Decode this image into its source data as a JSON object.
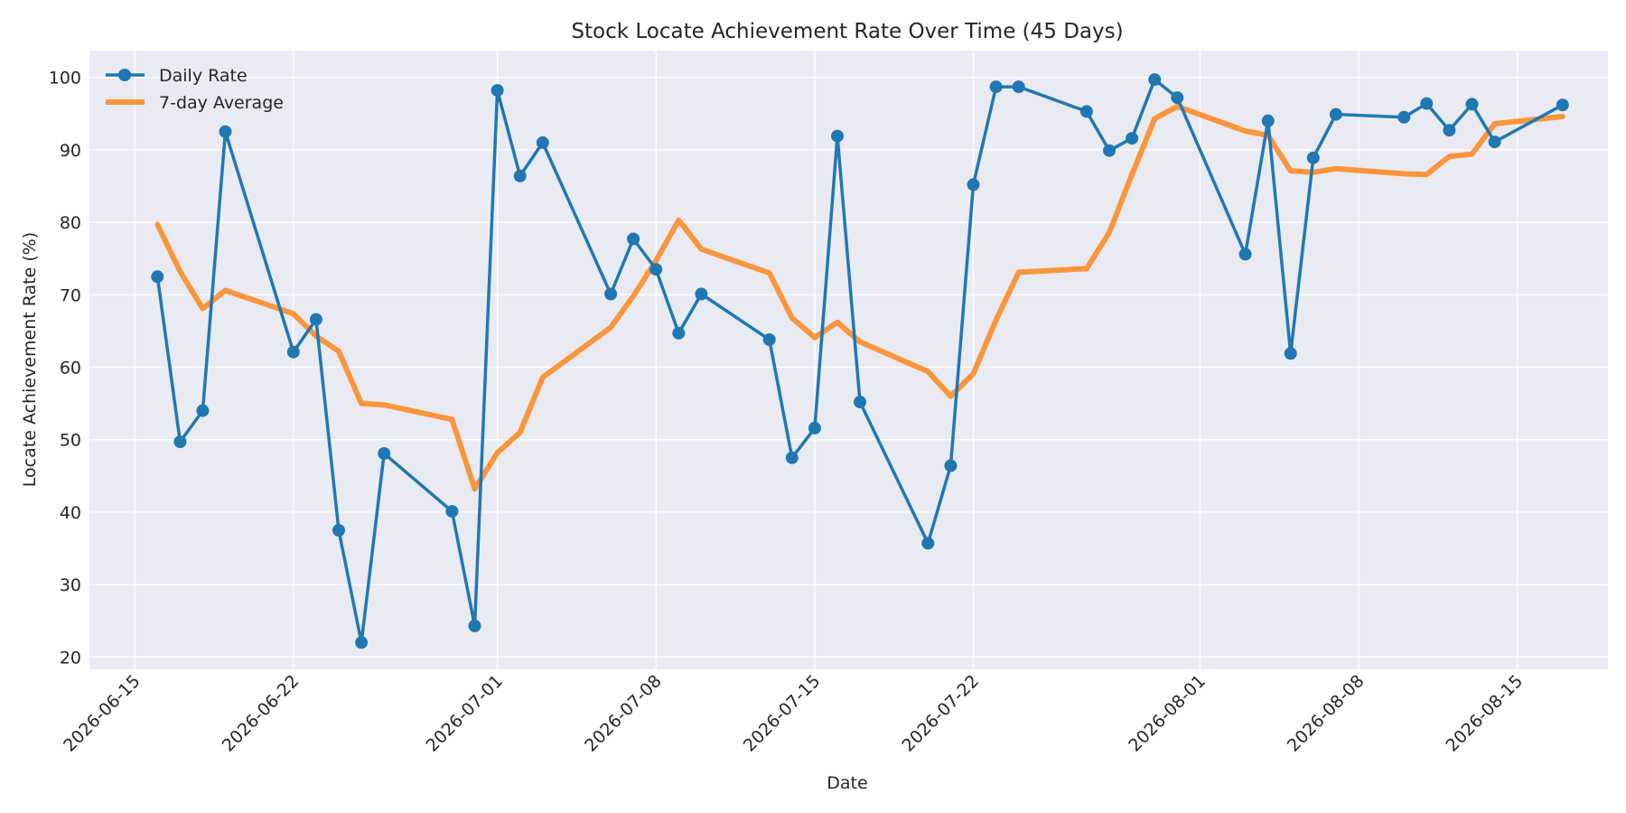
{
  "chart_data": {
    "type": "line",
    "title": "Stock Locate Achievement Rate Over Time (45 Days)",
    "xlabel": "Date",
    "ylabel": "Locate Achievement Rate (%)",
    "x_ticks": [
      "2026-06-15",
      "2026-06-22",
      "2026-07-01",
      "2026-07-08",
      "2026-07-15",
      "2026-07-22",
      "2026-08-01",
      "2026-08-08",
      "2026-08-15"
    ],
    "y_ticks": [
      20,
      30,
      40,
      50,
      60,
      70,
      80,
      90,
      100
    ],
    "xlim": [
      "2026-06-13",
      "2026-08-19"
    ],
    "ylim": [
      18.3,
      103.7
    ],
    "grid": true,
    "legend_position": "top-left",
    "x": [
      "2026-06-16",
      "2026-06-17",
      "2026-06-18",
      "2026-06-19",
      "2026-06-22",
      "2026-06-23",
      "2026-06-24",
      "2026-06-25",
      "2026-06-26",
      "2026-06-29",
      "2026-06-30",
      "2026-07-01",
      "2026-07-02",
      "2026-07-03",
      "2026-07-06",
      "2026-07-07",
      "2026-07-08",
      "2026-07-09",
      "2026-07-10",
      "2026-07-13",
      "2026-07-14",
      "2026-07-15",
      "2026-07-16",
      "2026-07-17",
      "2026-07-20",
      "2026-07-21",
      "2026-07-22",
      "2026-07-23",
      "2026-07-24",
      "2026-07-27",
      "2026-07-28",
      "2026-07-29",
      "2026-07-30",
      "2026-07-31",
      "2026-08-03",
      "2026-08-04",
      "2026-08-05",
      "2026-08-06",
      "2026-08-07",
      "2026-08-10",
      "2026-08-11",
      "2026-08-12",
      "2026-08-13",
      "2026-08-14",
      "2026-08-17"
    ],
    "series": [
      {
        "name": "Daily Rate",
        "color": "#1f77b4",
        "marker": "circle",
        "values": [
          72.5,
          49.7,
          54.0,
          92.5,
          62.1,
          66.6,
          37.5,
          22.0,
          48.1,
          40.1,
          24.3,
          98.2,
          86.4,
          91.0,
          70.1,
          77.7,
          73.5,
          64.7,
          70.1,
          63.8,
          47.5,
          51.6,
          91.9,
          55.2,
          35.7,
          46.4,
          85.2,
          98.7,
          98.7,
          95.3,
          89.9,
          91.6,
          99.7,
          97.2,
          75.6,
          94.0,
          61.9,
          88.9,
          94.9,
          94.5,
          96.4,
          92.7,
          96.3,
          91.1,
          96.2
        ]
      },
      {
        "name": "7-day Average",
        "color": "#ff7f0e",
        "marker": "none",
        "values": [
          79.7,
          73.2,
          68.1,
          70.6,
          67.4,
          64.3,
          62.2,
          55.0,
          54.8,
          52.8,
          43.2,
          48.2,
          51.0,
          58.6,
          65.5,
          69.8,
          74.7,
          80.3,
          76.3,
          73.0,
          66.8,
          64.1,
          66.2,
          63.5,
          59.4,
          56.0,
          59.1,
          66.5,
          73.1,
          73.6,
          78.6,
          86.6,
          94.3,
          96.0,
          92.6,
          92.0,
          87.1,
          86.9,
          87.4,
          86.7,
          86.6,
          89.1,
          89.4,
          93.6,
          94.6
        ]
      }
    ]
  }
}
